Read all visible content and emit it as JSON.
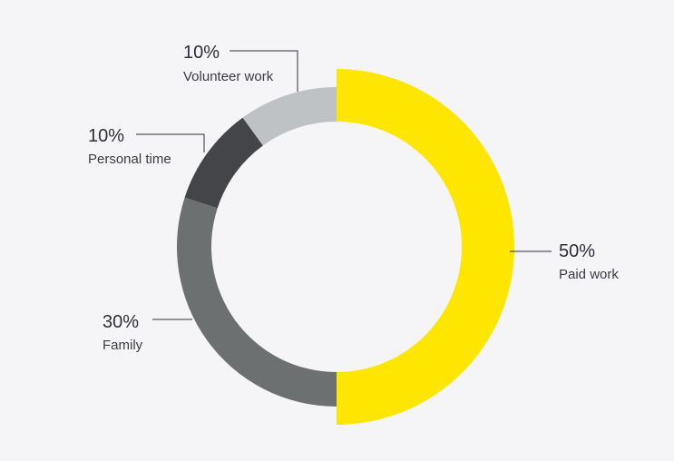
{
  "chart_data": {
    "type": "pie",
    "variant": "donut",
    "title": "",
    "slices": [
      {
        "label": "Paid work",
        "pct_text": "50%",
        "value": 50,
        "color": "#ffe600"
      },
      {
        "label": "Family",
        "pct_text": "30%",
        "value": 30,
        "color": "#6d7071"
      },
      {
        "label": "Personal time",
        "pct_text": "10%",
        "value": 10,
        "color": "#444549"
      },
      {
        "label": "Volunteer work",
        "pct_text": "10%",
        "value": 10,
        "color": "#bfc2c4"
      }
    ],
    "leader_color": "#2e2e38"
  }
}
